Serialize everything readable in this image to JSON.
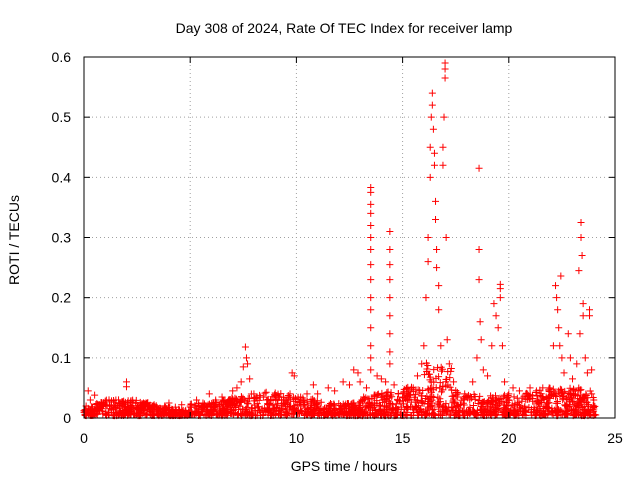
{
  "chart_data": {
    "type": "scatter",
    "title": "Day 308 of 2024, Rate Of TEC Index for receiver lamp",
    "xlabel": "GPS time / hours",
    "ylabel": "ROTI / TECUs",
    "xlim": [
      0,
      25
    ],
    "ylim": [
      0,
      0.6
    ],
    "xticks": [
      0,
      5,
      10,
      15,
      20,
      25
    ],
    "yticks": [
      0,
      0.1,
      0.2,
      0.3,
      0.4,
      0.5,
      0.6
    ],
    "xtick_labels": [
      "0",
      "5",
      "10",
      "15",
      "20",
      "25"
    ],
    "ytick_labels": [
      "0",
      "0.1",
      "0.2",
      "0.3",
      "0.4",
      "0.5",
      "0.6"
    ],
    "grid": true,
    "marker": "+",
    "color": "#ff0000",
    "series": [
      {
        "points": [
          [
            0.0,
            0.012
          ],
          [
            0.1,
            0.02
          ],
          [
            0.2,
            0.045
          ],
          [
            0.3,
            0.03
          ],
          [
            0.4,
            0.018
          ],
          [
            0.5,
            0.038
          ],
          [
            0.6,
            0.015
          ],
          [
            0.8,
            0.022
          ],
          [
            1.0,
            0.028
          ],
          [
            1.2,
            0.02
          ],
          [
            1.5,
            0.03
          ],
          [
            1.7,
            0.025
          ],
          [
            1.9,
            0.018
          ],
          [
            2.0,
            0.06
          ],
          [
            2.0,
            0.052
          ],
          [
            2.2,
            0.028
          ],
          [
            2.5,
            0.02
          ],
          [
            2.8,
            0.025
          ],
          [
            3.0,
            0.018
          ],
          [
            3.3,
            0.022
          ],
          [
            3.5,
            0.015
          ],
          [
            3.8,
            0.02
          ],
          [
            4.0,
            0.025
          ],
          [
            4.3,
            0.018
          ],
          [
            4.6,
            0.022
          ],
          [
            5.0,
            0.02
          ],
          [
            5.3,
            0.03
          ],
          [
            5.6,
            0.025
          ],
          [
            5.9,
            0.04
          ],
          [
            6.2,
            0.03
          ],
          [
            6.5,
            0.035
          ],
          [
            6.8,
            0.03
          ],
          [
            7.0,
            0.045
          ],
          [
            7.2,
            0.05
          ],
          [
            7.4,
            0.06
          ],
          [
            7.5,
            0.085
          ],
          [
            7.6,
            0.118
          ],
          [
            7.65,
            0.1
          ],
          [
            7.7,
            0.09
          ],
          [
            7.8,
            0.065
          ],
          [
            8.0,
            0.04
          ],
          [
            8.3,
            0.035
          ],
          [
            8.6,
            0.03
          ],
          [
            9.0,
            0.035
          ],
          [
            9.3,
            0.03
          ],
          [
            9.7,
            0.04
          ],
          [
            9.8,
            0.075
          ],
          [
            9.9,
            0.07
          ],
          [
            10.2,
            0.035
          ],
          [
            10.5,
            0.04
          ],
          [
            10.8,
            0.055
          ],
          [
            11.0,
            0.04
          ],
          [
            11.5,
            0.05
          ],
          [
            11.8,
            0.045
          ],
          [
            12.2,
            0.06
          ],
          [
            12.5,
            0.055
          ],
          [
            12.7,
            0.08
          ],
          [
            12.9,
            0.075
          ],
          [
            13.0,
            0.06
          ],
          [
            13.3,
            0.05
          ],
          [
            13.5,
            0.383
          ],
          [
            13.5,
            0.375
          ],
          [
            13.5,
            0.355
          ],
          [
            13.5,
            0.34
          ],
          [
            13.5,
            0.32
          ],
          [
            13.5,
            0.3
          ],
          [
            13.5,
            0.28
          ],
          [
            13.5,
            0.255
          ],
          [
            13.5,
            0.23
          ],
          [
            13.5,
            0.2
          ],
          [
            13.5,
            0.18
          ],
          [
            13.5,
            0.15
          ],
          [
            13.5,
            0.12
          ],
          [
            13.5,
            0.1
          ],
          [
            13.5,
            0.08
          ],
          [
            13.8,
            0.07
          ],
          [
            14.0,
            0.065
          ],
          [
            14.2,
            0.06
          ],
          [
            14.4,
            0.31
          ],
          [
            14.4,
            0.28
          ],
          [
            14.4,
            0.255
          ],
          [
            14.4,
            0.23
          ],
          [
            14.4,
            0.2
          ],
          [
            14.4,
            0.17
          ],
          [
            14.4,
            0.14
          ],
          [
            14.4,
            0.11
          ],
          [
            14.4,
            0.09
          ],
          [
            14.6,
            0.055
          ],
          [
            14.8,
            0.04
          ],
          [
            15.0,
            0.035
          ],
          [
            15.3,
            0.045
          ],
          [
            15.5,
            0.05
          ],
          [
            15.7,
            0.07
          ],
          [
            15.9,
            0.09
          ],
          [
            16.0,
            0.12
          ],
          [
            16.1,
            0.2
          ],
          [
            16.2,
            0.26
          ],
          [
            16.2,
            0.3
          ],
          [
            16.3,
            0.4
          ],
          [
            16.3,
            0.45
          ],
          [
            16.35,
            0.5
          ],
          [
            16.4,
            0.54
          ],
          [
            16.4,
            0.52
          ],
          [
            16.45,
            0.48
          ],
          [
            16.5,
            0.44
          ],
          [
            16.5,
            0.42
          ],
          [
            16.55,
            0.36
          ],
          [
            16.55,
            0.33
          ],
          [
            16.6,
            0.28
          ],
          [
            16.6,
            0.25
          ],
          [
            16.7,
            0.22
          ],
          [
            16.7,
            0.18
          ],
          [
            16.8,
            0.12
          ],
          [
            16.9,
            0.45
          ],
          [
            16.9,
            0.42
          ],
          [
            16.95,
            0.5
          ],
          [
            17.0,
            0.59
          ],
          [
            17.0,
            0.58
          ],
          [
            17.0,
            0.565
          ],
          [
            17.05,
            0.3
          ],
          [
            17.1,
            0.13
          ],
          [
            17.2,
            0.09
          ],
          [
            17.4,
            0.06
          ],
          [
            17.6,
            0.04
          ],
          [
            18.0,
            0.035
          ],
          [
            18.3,
            0.06
          ],
          [
            18.5,
            0.1
          ],
          [
            18.6,
            0.415
          ],
          [
            18.6,
            0.28
          ],
          [
            18.6,
            0.23
          ],
          [
            18.65,
            0.16
          ],
          [
            18.7,
            0.13
          ],
          [
            18.8,
            0.08
          ],
          [
            19.0,
            0.07
          ],
          [
            19.2,
            0.12
          ],
          [
            19.3,
            0.19
          ],
          [
            19.4,
            0.17
          ],
          [
            19.5,
            0.15
          ],
          [
            19.6,
            0.222
          ],
          [
            19.6,
            0.215
          ],
          [
            19.6,
            0.2
          ],
          [
            19.7,
            0.12
          ],
          [
            19.8,
            0.06
          ],
          [
            20.0,
            0.04
          ],
          [
            20.2,
            0.05
          ],
          [
            20.5,
            0.045
          ],
          [
            20.8,
            0.04
          ],
          [
            21.0,
            0.05
          ],
          [
            21.3,
            0.045
          ],
          [
            21.6,
            0.05
          ],
          [
            21.9,
            0.05
          ],
          [
            22.1,
            0.12
          ],
          [
            22.2,
            0.22
          ],
          [
            22.25,
            0.2
          ],
          [
            22.3,
            0.18
          ],
          [
            22.35,
            0.15
          ],
          [
            22.4,
            0.12
          ],
          [
            22.45,
            0.236
          ],
          [
            22.5,
            0.1
          ],
          [
            22.6,
            0.075
          ],
          [
            22.8,
            0.14
          ],
          [
            22.9,
            0.1
          ],
          [
            23.0,
            0.065
          ],
          [
            23.2,
            0.09
          ],
          [
            23.3,
            0.245
          ],
          [
            23.35,
            0.14
          ],
          [
            23.4,
            0.325
          ],
          [
            23.4,
            0.3
          ],
          [
            23.45,
            0.27
          ],
          [
            23.5,
            0.19
          ],
          [
            23.5,
            0.17
          ],
          [
            23.6,
            0.1
          ],
          [
            23.7,
            0.075
          ],
          [
            23.8,
            0.18
          ],
          [
            23.8,
            0.17
          ],
          [
            23.9,
            0.08
          ],
          [
            23.9,
            0.04
          ],
          [
            24.0,
            0.03
          ],
          [
            24.0,
            0.015
          ]
        ]
      }
    ]
  }
}
